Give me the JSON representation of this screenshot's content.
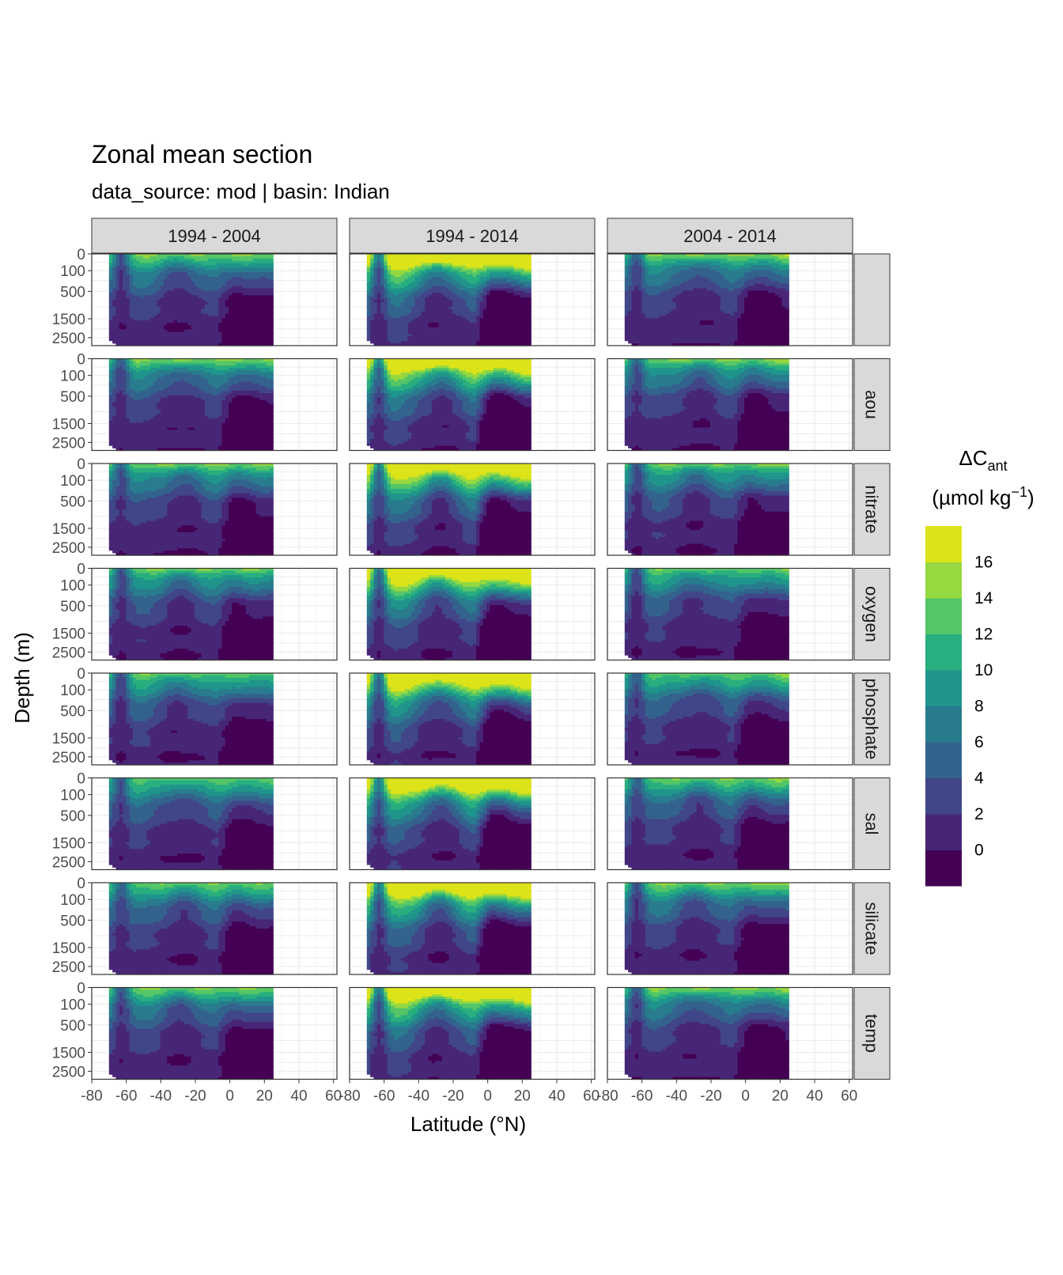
{
  "title": "Zonal mean section",
  "subtitle": "data_source:  mod | basin: Indian",
  "chart_data": {
    "type": "heatmap",
    "layout": "facet_grid",
    "xlabel": "Latitude (°N)",
    "ylabel": "Depth (m)",
    "x_ticks": [
      "-80",
      "-60",
      "-40",
      "-20",
      "0",
      "20",
      "40",
      "60"
    ],
    "x_range": [
      -80,
      62
    ],
    "data_lat_range": [
      -70,
      25
    ],
    "y_ticks": [
      "0",
      "100",
      "500",
      "1500",
      "2500"
    ],
    "y_scale": "sqrt",
    "y_range": [
      0,
      3000
    ],
    "column_facets": [
      "1994 - 2004",
      "1994 - 2014",
      "2004 - 2014"
    ],
    "row_facets": [
      "",
      "aou",
      "nitrate",
      "oxygen",
      "phosphate",
      "sal",
      "silicate",
      "temp"
    ],
    "legend": {
      "title_main": "ΔC",
      "title_sub": "ant",
      "title_unit_a": "(µmol kg",
      "title_unit_sup": "−1",
      "title_unit_b": ")",
      "labels": [
        "16",
        "14",
        "12",
        "10",
        "8",
        "6",
        "4",
        "2",
        "0"
      ],
      "breaks": [
        16,
        14,
        12,
        10,
        8,
        6,
        4,
        2,
        0
      ],
      "levels_bottom_to_top": [
        -2,
        0,
        2,
        4,
        6,
        8,
        10,
        12,
        14,
        16,
        18
      ],
      "colors_bottom_to_top": [
        "#440154",
        "#482677",
        "#404688",
        "#33638d",
        "#287c8e",
        "#1f958b",
        "#29af7f",
        "#55c667",
        "#95d840",
        "#dce319"
      ],
      "placement": "right"
    },
    "grid": true
  }
}
